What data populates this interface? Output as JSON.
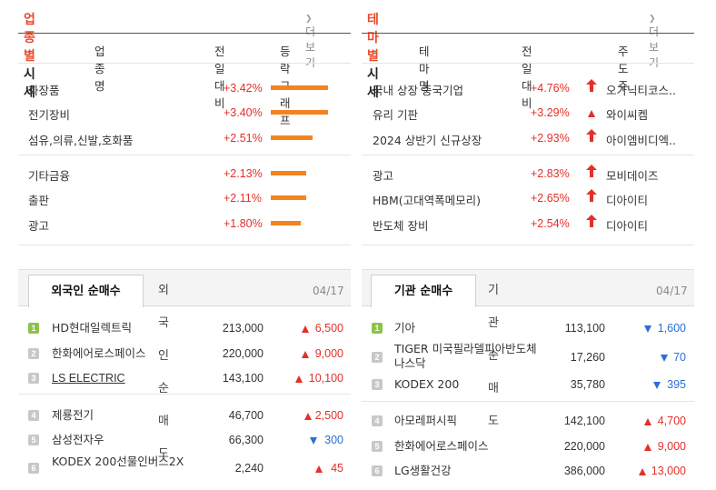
{
  "industry": {
    "title_accent": "업종별",
    "title_rest": "시세",
    "more_label": "더보기",
    "headers": [
      "업종명",
      "전일대비",
      "등락그래프"
    ],
    "rows": [
      {
        "name": "화장품",
        "change": "+3.42%",
        "bar_value": 3.42
      },
      {
        "name": "전기장비",
        "change": "+3.40%",
        "bar_value": 3.4
      },
      {
        "name": "섬유,의류,신발,호화품",
        "change": "+2.51%",
        "bar_value": 2.51
      },
      {
        "name": "기타금융",
        "change": "+2.13%",
        "bar_value": 2.13
      },
      {
        "name": "출판",
        "change": "+2.11%",
        "bar_value": 2.11
      },
      {
        "name": "광고",
        "change": "+1.80%",
        "bar_value": 1.8
      }
    ]
  },
  "theme": {
    "title_accent": "테마별",
    "title_rest": "시세",
    "more_label": "더보기",
    "headers": [
      "테마명",
      "전일대비",
      "주도주"
    ],
    "rows": [
      {
        "name": "국내 상장 중국기업",
        "change": "+4.76%",
        "leader": "오가닉티코스..",
        "arrow": "big"
      },
      {
        "name": "유리 기판",
        "change": "+3.29%",
        "leader": "와이씨켐",
        "arrow": "small"
      },
      {
        "name": "2024 상반기 신규상장",
        "change": "+2.93%",
        "leader": "아이엠비디엑..",
        "arrow": "big"
      },
      {
        "name": "광고",
        "change": "+2.83%",
        "leader": "모비데이즈",
        "arrow": "big"
      },
      {
        "name": "HBM(고대역폭메모리)",
        "change": "+2.65%",
        "leader": "디아이티",
        "arrow": "big"
      },
      {
        "name": "반도체 장비",
        "change": "+2.54%",
        "leader": "디아이티",
        "arrow": "big"
      }
    ]
  },
  "foreign": {
    "tab_active": "외국인 순매수",
    "tab_inactive": "외국인 순매도",
    "date": "04/17",
    "rows": [
      {
        "rank": "1",
        "name": "HD현대일렉트릭",
        "price": "213,000",
        "change": "6,500",
        "dir": "up"
      },
      {
        "rank": "2",
        "name": "한화에어로스페이스",
        "price": "220,000",
        "change": "9,000",
        "dir": "up"
      },
      {
        "rank": "3",
        "name": "LS ELECTRIC",
        "price": "143,100",
        "change": "10,100",
        "dir": "up"
      },
      {
        "rank": "4",
        "name": "제룡전기",
        "price": "46,700",
        "change": "2,500",
        "dir": "up"
      },
      {
        "rank": "5",
        "name": "삼성전자우",
        "price": "66,300",
        "change": "300",
        "dir": "down"
      },
      {
        "rank": "6",
        "name": "KODEX 200선물인버스2X",
        "price": "2,240",
        "change": "45",
        "dir": "up"
      }
    ]
  },
  "institution": {
    "tab_active": "기관 순매수",
    "tab_inactive": "기관 순매도",
    "date": "04/17",
    "rows": [
      {
        "rank": "1",
        "name": "기아",
        "price": "113,100",
        "change": "1,600",
        "dir": "down"
      },
      {
        "rank": "2",
        "name": "TIGER 미국필라델피아반도체나스닥",
        "price": "17,260",
        "change": "70",
        "dir": "down"
      },
      {
        "rank": "3",
        "name": "KODEX 200",
        "price": "35,780",
        "change": "395",
        "dir": "down"
      },
      {
        "rank": "4",
        "name": "아모레퍼시픽",
        "price": "142,100",
        "change": "4,700",
        "dir": "up"
      },
      {
        "rank": "5",
        "name": "한화에어로스페이스",
        "price": "220,000",
        "change": "9,000",
        "dir": "up"
      },
      {
        "rank": "6",
        "name": "LG생활건강",
        "price": "386,000",
        "change": "13,000",
        "dir": "up"
      }
    ]
  },
  "colors": {
    "accent": "#ea4a2a",
    "up": "#e42f2a",
    "down": "#2a6fd6",
    "bar": "#f5821f",
    "rank_top": "#8bc34a"
  }
}
